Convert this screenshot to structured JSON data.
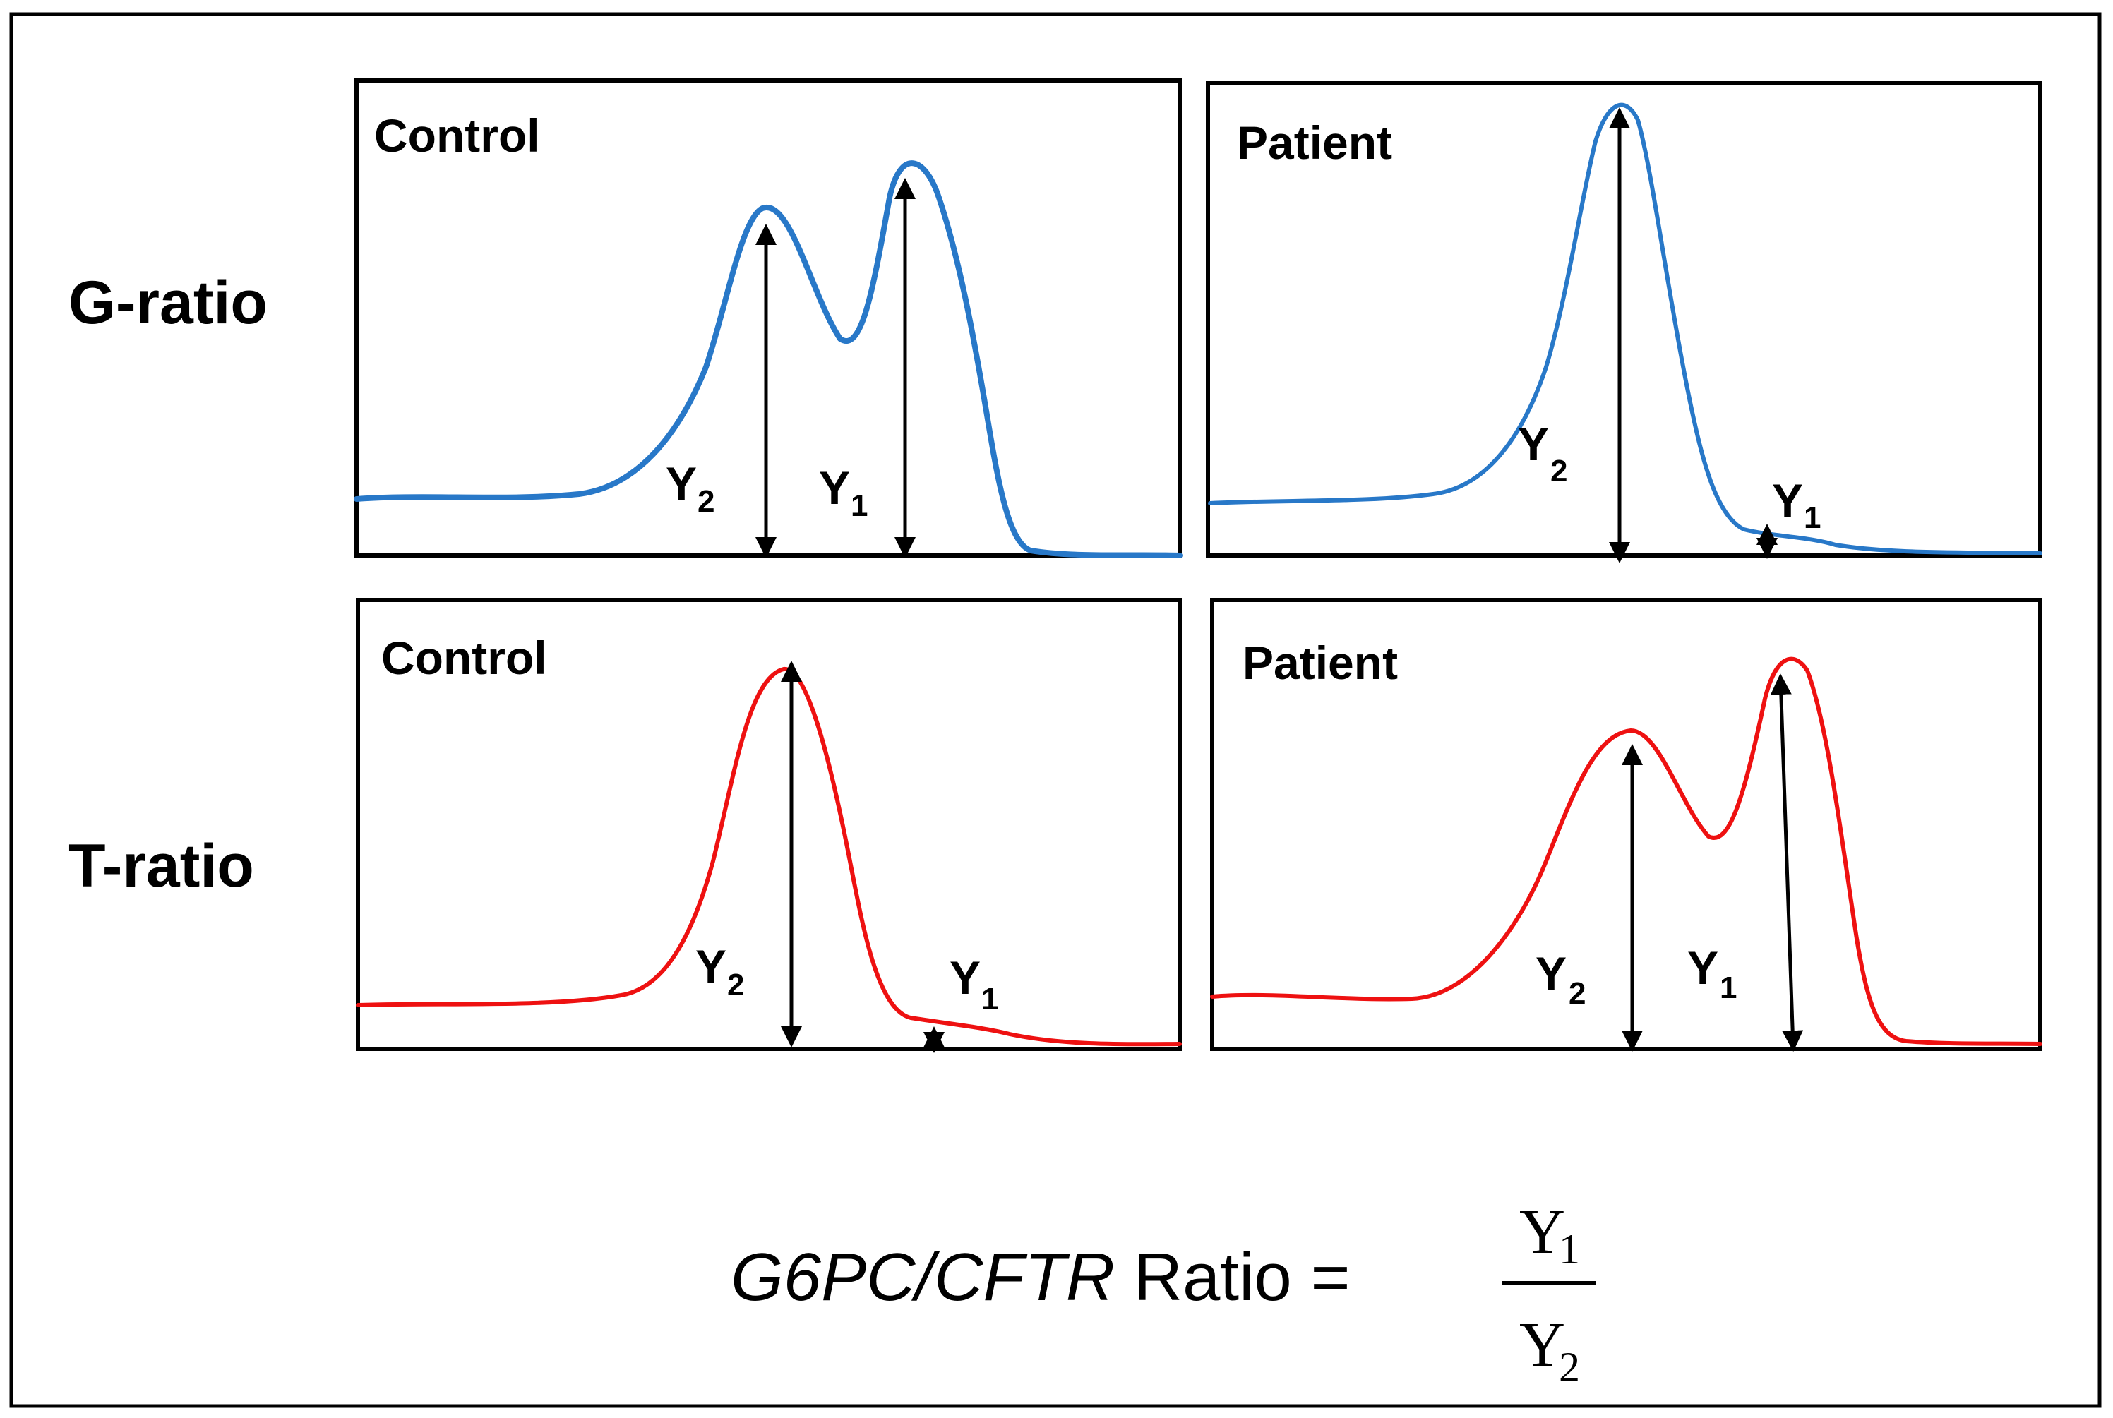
{
  "rows": {
    "g_ratio": "G-ratio",
    "t_ratio": "T-ratio"
  },
  "panels": {
    "g_control": {
      "title": "Control"
    },
    "g_patient": {
      "title": "Patient"
    },
    "t_control": {
      "title": "Control"
    },
    "t_patient": {
      "title": "Patient"
    }
  },
  "peak_labels": {
    "y1_main": "Y",
    "y1_sub": "1",
    "y2_main": "Y",
    "y2_sub": "2"
  },
  "formula": {
    "gene_ratio": "G6PC/CFTR",
    "word": " Ratio = ",
    "numerator": "Y",
    "numerator_sub": "1",
    "denominator": "Y",
    "denominator_sub": "2"
  },
  "colors": {
    "g_curve": "#2878c8",
    "t_curve": "#ee1111",
    "frame": "#000000"
  }
}
